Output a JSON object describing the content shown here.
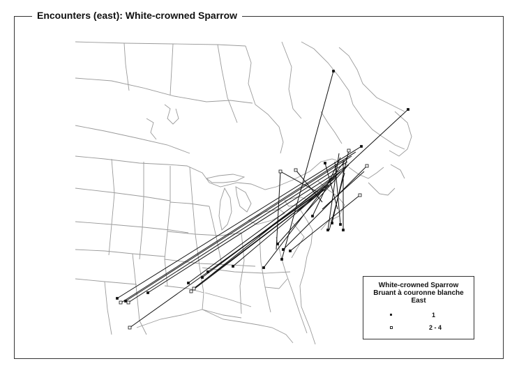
{
  "title": "Encounters (east): White-crowned Sparrow",
  "legend": {
    "line1": "White-crowned Sparrow",
    "line2": "Bruant à couronne blanche",
    "line3": "East",
    "items": [
      {
        "label": "1",
        "symbol": "small-square-icon"
      },
      {
        "label": "2 - 4",
        "symbol": "open-square-icon"
      }
    ]
  },
  "colors": {
    "lines": "#111111",
    "borders": "#9a9a9a",
    "frame": "#333333"
  }
}
